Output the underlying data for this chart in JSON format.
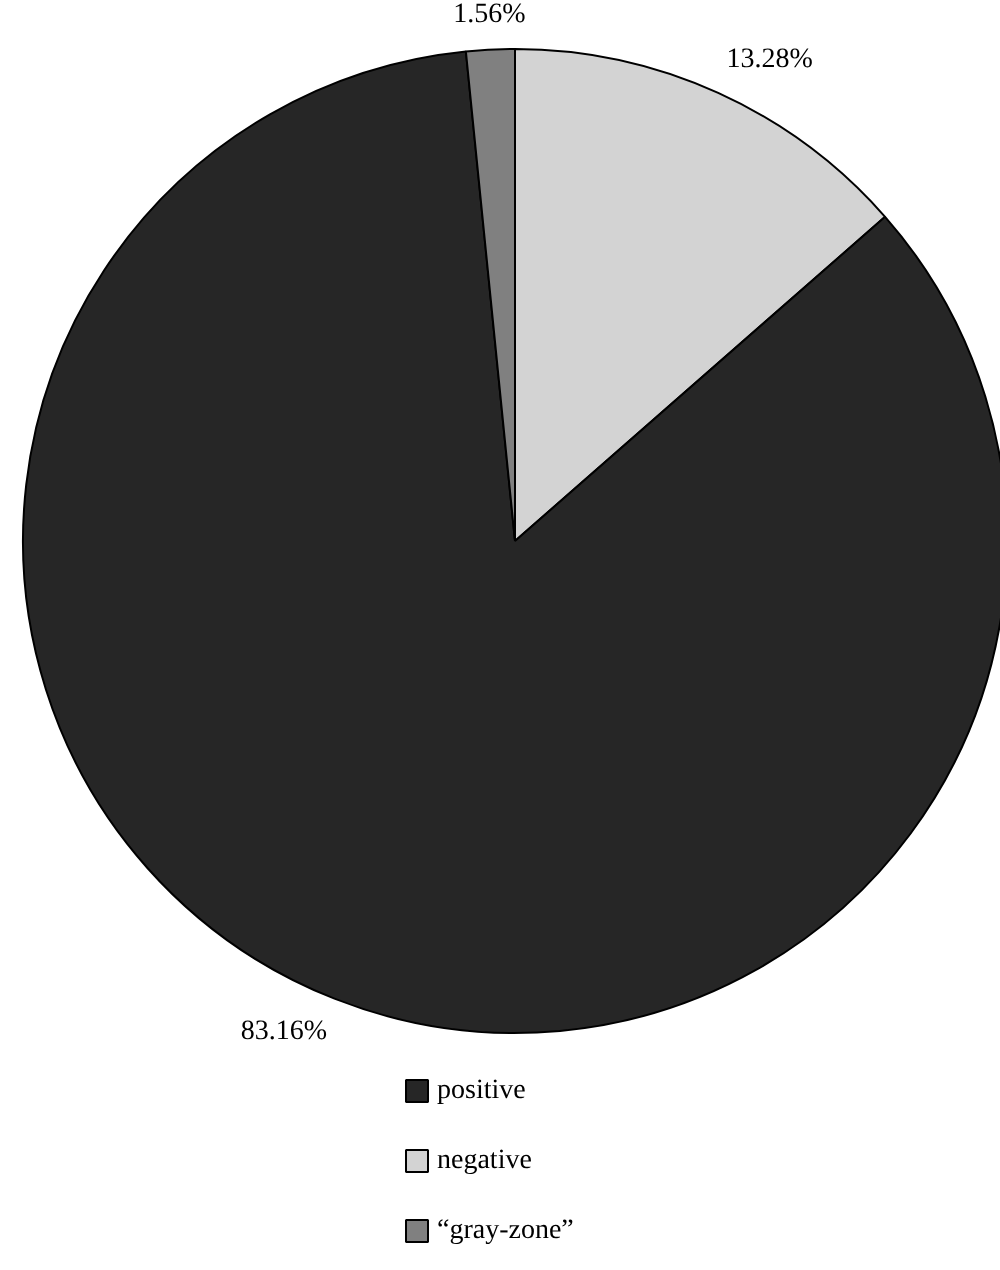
{
  "chart_data": {
    "type": "pie",
    "categories": [
      "negative",
      "positive",
      "“gray-zone”"
    ],
    "values": [
      13.28,
      83.16,
      1.56
    ],
    "colors": [
      "#d3d3d3",
      "#262626",
      "#808080"
    ],
    "value_labels": [
      "13.28%",
      "83.16%",
      "1.56%"
    ],
    "legend": "bottom"
  }
}
